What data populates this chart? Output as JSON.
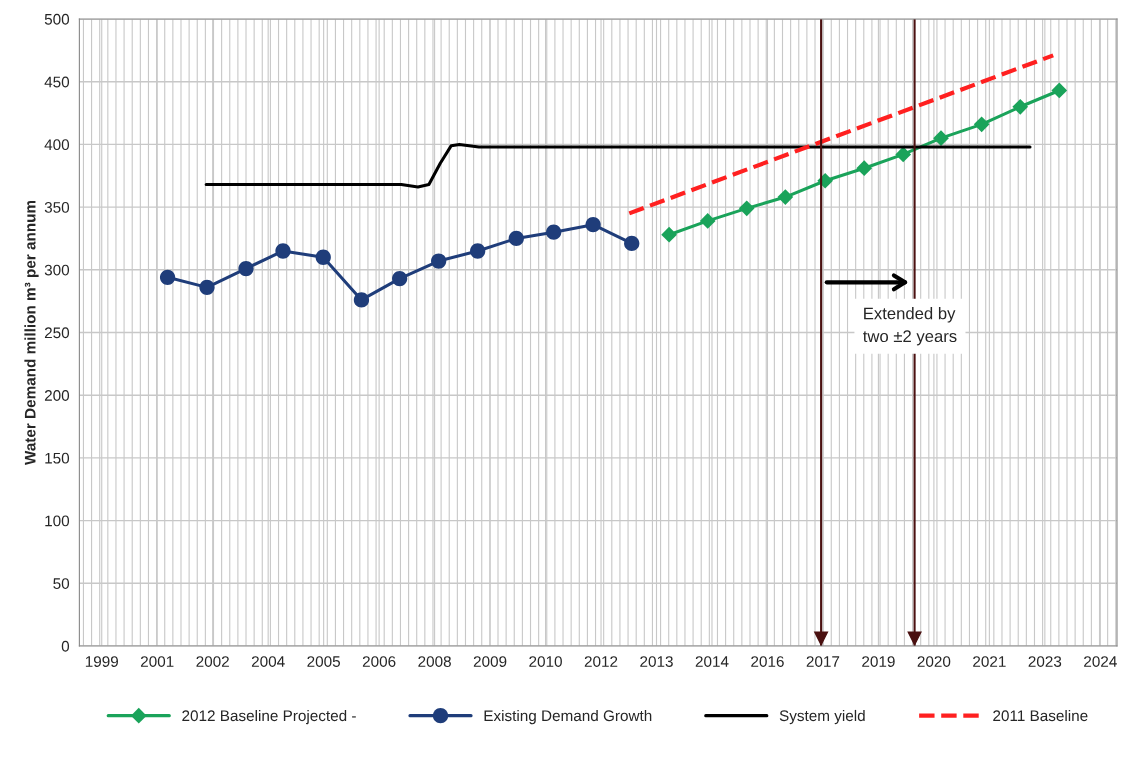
{
  "chart_data": {
    "type": "line",
    "ylabel": "Water Demand million m³ per annum",
    "xlim": [
      1998.9,
      2024.43
    ],
    "xticks": [
      {
        "value": 1999.45,
        "label": "1999"
      },
      {
        "value": 2000.815,
        "label": "2001"
      },
      {
        "value": 2002.18,
        "label": "2002"
      },
      {
        "value": 2003.545,
        "label": "2004"
      },
      {
        "value": 2004.91,
        "label": "2005"
      },
      {
        "value": 2006.275,
        "label": "2006"
      },
      {
        "value": 2007.64,
        "label": "2008"
      },
      {
        "value": 2009.005,
        "label": "2009"
      },
      {
        "value": 2010.37,
        "label": "2010"
      },
      {
        "value": 2011.735,
        "label": "2012"
      },
      {
        "value": 2013.1,
        "label": "2013"
      },
      {
        "value": 2014.465,
        "label": "2014"
      },
      {
        "value": 2015.83,
        "label": "2016"
      },
      {
        "value": 2017.195,
        "label": "2017"
      },
      {
        "value": 2018.56,
        "label": "2019"
      },
      {
        "value": 2019.925,
        "label": "2020"
      },
      {
        "value": 2021.29,
        "label": "2021"
      },
      {
        "value": 2022.655,
        "label": "2023"
      },
      {
        "value": 2024.02,
        "label": "2024"
      }
    ],
    "ylim": [
      0,
      500
    ],
    "yticks": [
      0,
      50,
      100,
      150,
      200,
      250,
      300,
      350,
      400,
      450,
      500
    ],
    "grid": true,
    "legend": "bottom",
    "series": [
      {
        "name": "2012 Baseline Projected -",
        "color": "#1aa35a",
        "marker": "diamond",
        "line_style": "solid",
        "x": [
          2013.41,
          2014.36,
          2015.32,
          2016.27,
          2017.25,
          2018.21,
          2019.17,
          2020.1,
          2021.1,
          2022.05,
          2023.01
        ],
        "values": [
          328,
          339,
          349,
          358,
          371,
          381,
          392,
          405,
          416,
          430,
          443
        ]
      },
      {
        "name": "Existing Demand Growth",
        "color": "#1f3d7a",
        "marker": "circle",
        "line_style": "solid",
        "x": [
          2001.07,
          2002.04,
          2003.0,
          2003.91,
          2004.9,
          2005.84,
          2006.78,
          2007.74,
          2008.7,
          2009.65,
          2010.57,
          2011.54,
          2012.49
        ],
        "values": [
          294,
          286,
          301,
          315,
          310,
          276,
          293,
          307,
          315,
          325,
          330,
          336,
          321
        ]
      },
      {
        "name": "System yield",
        "color": "#000000",
        "marker": "none",
        "line_style": "solid",
        "x": [
          2002.02,
          2006.82,
          2007.23,
          2007.5,
          2007.78,
          2008.05,
          2008.25,
          2008.73,
          2022.29
        ],
        "values": [
          368,
          368,
          366,
          368,
          385,
          399,
          400,
          398,
          398
        ]
      },
      {
        "name": "2011 Baseline",
        "color": "#ff2020",
        "marker": "none",
        "line_style": "dashed",
        "x": [
          2012.43,
          2022.86
        ],
        "values": [
          345,
          471
        ]
      }
    ],
    "ref_lines": [
      {
        "axis": "x",
        "value": 2017.15,
        "color": "#4a1010"
      },
      {
        "axis": "x",
        "value": 2019.45,
        "color": "#4a1010"
      }
    ],
    "annotations": [
      "Extended by\ntwo ±2 years"
    ]
  }
}
